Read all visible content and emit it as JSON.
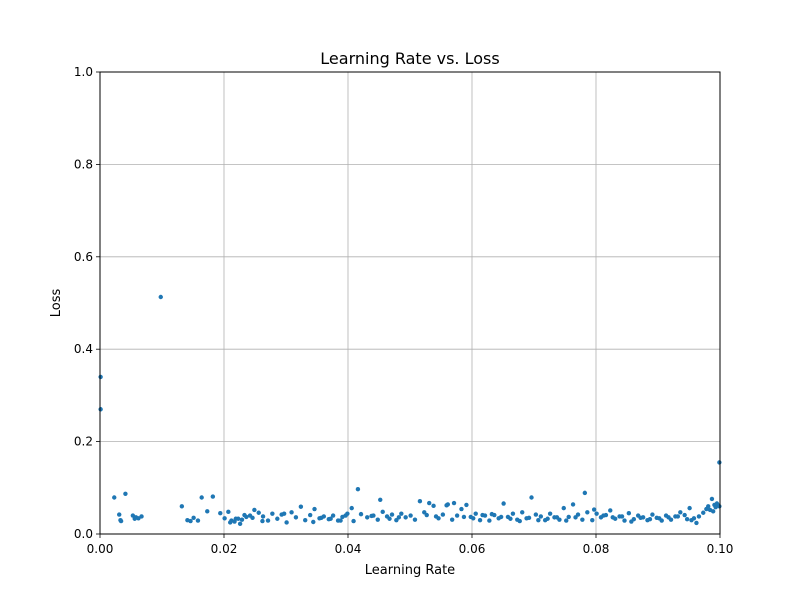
{
  "chart_data": {
    "type": "scatter",
    "title": "Learning Rate vs. Loss",
    "xlabel": "Learning Rate",
    "ylabel": "Loss",
    "xlim": [
      0.0,
      0.1
    ],
    "ylim": [
      0.0,
      1.0
    ],
    "xticks": [
      0.0,
      0.02,
      0.04,
      0.06,
      0.08,
      0.1
    ],
    "yticks": [
      0.0,
      0.2,
      0.4,
      0.6,
      0.8,
      1.0
    ],
    "xtick_labels": [
      "0.00",
      "0.02",
      "0.04",
      "0.06",
      "0.08",
      "0.10"
    ],
    "ytick_labels": [
      "0.0",
      "0.2",
      "0.4",
      "0.6",
      "0.8",
      "1.0"
    ],
    "grid": true,
    "marker_color": "#1f77b4",
    "x": [
      0.0001,
      0.0001,
      0.0023,
      0.0031,
      0.0033,
      0.0034,
      0.0041,
      0.0053,
      0.0056,
      0.0058,
      0.0062,
      0.0067,
      0.0098,
      0.0132,
      0.0141,
      0.0146,
      0.0151,
      0.0158,
      0.0164,
      0.0173,
      0.0182,
      0.0194,
      0.0201,
      0.0207,
      0.0212,
      0.0217,
      0.0223,
      0.0229,
      0.0236,
      0.0242,
      0.0249,
      0.0256,
      0.0263,
      0.0271,
      0.0278,
      0.0286,
      0.0293,
      0.0301,
      0.0309,
      0.0316,
      0.0324,
      0.0331,
      0.0339,
      0.0346,
      0.0354,
      0.0361,
      0.0369,
      0.0376,
      0.0384,
      0.0391,
      0.0399,
      0.0406,
      0.0416,
      0.0421,
      0.0431,
      0.0441,
      0.0448,
      0.0456,
      0.0463,
      0.0471,
      0.0478,
      0.0486,
      0.0493,
      0.0501,
      0.0508,
      0.0516,
      0.0523,
      0.0531,
      0.0538,
      0.0546,
      0.0553,
      0.0561,
      0.0568,
      0.0576,
      0.0583,
      0.0591,
      0.0598,
      0.0606,
      0.0613,
      0.0621,
      0.0628,
      0.0636,
      0.0643,
      0.0651,
      0.0658,
      0.0666,
      0.0673,
      0.0681,
      0.0688,
      0.0696,
      0.0703,
      0.0711,
      0.0718,
      0.0726,
      0.0733,
      0.0741,
      0.0748,
      0.0756,
      0.0763,
      0.0771,
      0.0778,
      0.0786,
      0.0794,
      0.0801,
      0.0808,
      0.0816,
      0.0823,
      0.0831,
      0.0838,
      0.0846,
      0.0853,
      0.0861,
      0.0868,
      0.0876,
      0.0883,
      0.0891,
      0.0898,
      0.0906,
      0.0913,
      0.0921,
      0.0928,
      0.0936,
      0.0943,
      0.0951,
      0.0958,
      0.0966,
      0.0973,
      0.0978,
      0.0981,
      0.0984,
      0.0987,
      0.0989,
      0.0991,
      0.0993,
      0.0995,
      0.0997,
      0.0999,
      0.0999,
      0.021,
      0.0219,
      0.0226,
      0.0233,
      0.0246,
      0.0262,
      0.0297,
      0.0344,
      0.0357,
      0.0372,
      0.0388,
      0.0396,
      0.0409,
      0.0438,
      0.0452,
      0.0467,
      0.0482,
      0.0527,
      0.0542,
      0.0559,
      0.0571,
      0.0587,
      0.0602,
      0.0617,
      0.0632,
      0.0647,
      0.0662,
      0.0677,
      0.0692,
      0.0707,
      0.0722,
      0.0737,
      0.0752,
      0.0767,
      0.0782,
      0.0797,
      0.0812,
      0.0827,
      0.0842,
      0.0857,
      0.0872,
      0.0887,
      0.0902,
      0.0917,
      0.0932,
      0.0947,
      0.0954,
      0.0962
    ],
    "y": [
      0.34,
      0.27,
      0.079,
      0.042,
      0.03,
      0.028,
      0.087,
      0.04,
      0.033,
      0.036,
      0.034,
      0.038,
      0.513,
      0.06,
      0.03,
      0.028,
      0.035,
      0.029,
      0.079,
      0.049,
      0.081,
      0.045,
      0.034,
      0.048,
      0.029,
      0.027,
      0.033,
      0.031,
      0.037,
      0.04,
      0.052,
      0.046,
      0.038,
      0.029,
      0.044,
      0.033,
      0.042,
      0.025,
      0.047,
      0.036,
      0.059,
      0.03,
      0.041,
      0.054,
      0.034,
      0.038,
      0.032,
      0.04,
      0.029,
      0.037,
      0.044,
      0.056,
      0.097,
      0.043,
      0.036,
      0.04,
      0.031,
      0.048,
      0.038,
      0.042,
      0.03,
      0.044,
      0.036,
      0.04,
      0.031,
      0.071,
      0.047,
      0.067,
      0.061,
      0.034,
      0.042,
      0.064,
      0.031,
      0.04,
      0.054,
      0.063,
      0.037,
      0.044,
      0.03,
      0.04,
      0.029,
      0.041,
      0.034,
      0.066,
      0.037,
      0.044,
      0.031,
      0.047,
      0.034,
      0.079,
      0.042,
      0.038,
      0.03,
      0.044,
      0.036,
      0.031,
      0.056,
      0.037,
      0.064,
      0.042,
      0.031,
      0.047,
      0.03,
      0.044,
      0.036,
      0.041,
      0.051,
      0.033,
      0.038,
      0.029,
      0.045,
      0.032,
      0.04,
      0.036,
      0.03,
      0.042,
      0.035,
      0.029,
      0.04,
      0.031,
      0.038,
      0.047,
      0.041,
      0.056,
      0.034,
      0.038,
      0.046,
      0.054,
      0.06,
      0.052,
      0.076,
      0.049,
      0.063,
      0.058,
      0.066,
      0.062,
      0.06,
      0.155,
      0.025,
      0.033,
      0.022,
      0.041,
      0.035,
      0.028,
      0.044,
      0.026,
      0.035,
      0.033,
      0.029,
      0.04,
      0.028,
      0.039,
      0.074,
      0.033,
      0.036,
      0.041,
      0.038,
      0.062,
      0.067,
      0.037,
      0.034,
      0.041,
      0.043,
      0.037,
      0.033,
      0.028,
      0.035,
      0.03,
      0.033,
      0.036,
      0.029,
      0.036,
      0.089,
      0.053,
      0.04,
      0.036,
      0.038,
      0.027,
      0.035,
      0.032,
      0.034,
      0.036,
      0.038,
      0.032,
      0.03,
      0.024
    ]
  }
}
